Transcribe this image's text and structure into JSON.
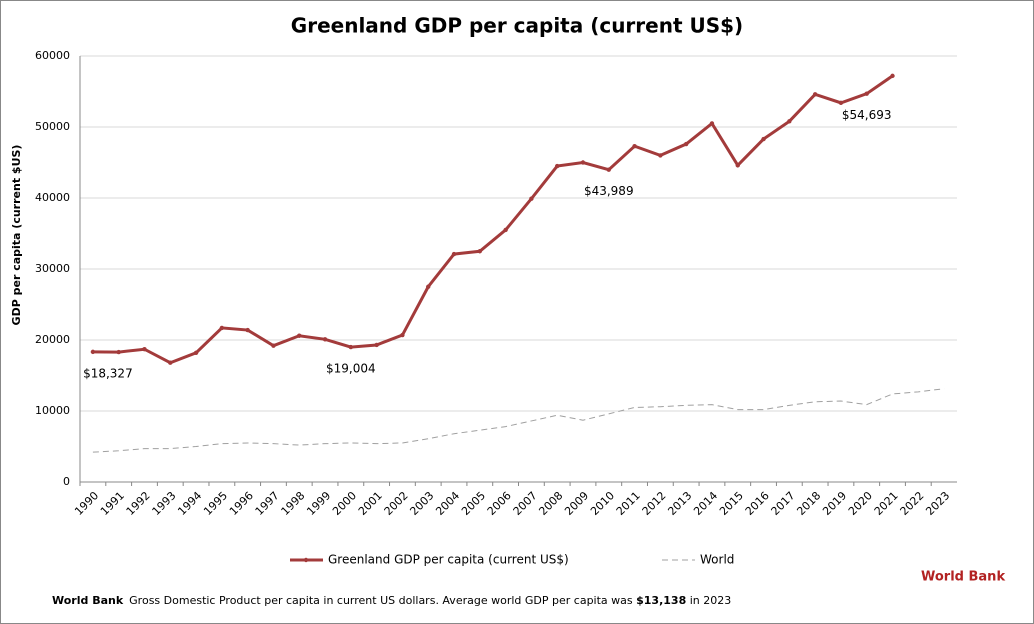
{
  "chart_data": {
    "type": "line",
    "title": "Greenland GDP per capita (current US$)",
    "y_label": "GDP per capita (current $US)",
    "categories": [
      "1990",
      "1991",
      "1992",
      "1993",
      "1994",
      "1995",
      "1996",
      "1997",
      "1998",
      "1999",
      "2000",
      "2001",
      "2002",
      "2003",
      "2004",
      "2005",
      "2006",
      "2007",
      "2008",
      "2009",
      "2010",
      "2011",
      "2012",
      "2013",
      "2014",
      "2015",
      "2016",
      "2017",
      "2018",
      "2019",
      "2020",
      "2021",
      "2022",
      "2023"
    ],
    "series": [
      {
        "name": "Greenland GDP per capita (current US$)",
        "color": "#a33b3b",
        "style": "solid",
        "values": [
          18327,
          18300,
          18700,
          16800,
          18200,
          21700,
          21400,
          19200,
          20600,
          20100,
          19004,
          19300,
          20700,
          27500,
          32100,
          32500,
          35500,
          39900,
          44500,
          45000,
          43989,
          47300,
          46000,
          47600,
          50500,
          44600,
          48300,
          50800,
          54600,
          53400,
          54693,
          57200,
          null,
          null
        ],
        "value_labels": [
          "$18,327",
          null,
          null,
          null,
          null,
          null,
          null,
          null,
          null,
          null,
          "$19,004",
          null,
          null,
          null,
          null,
          null,
          null,
          null,
          null,
          null,
          "$43,989",
          null,
          null,
          null,
          null,
          null,
          null,
          null,
          null,
          null,
          "$54,693",
          null,
          null,
          null
        ]
      },
      {
        "name": "World",
        "color": "#a0a0a0",
        "style": "dashed",
        "values": [
          4200,
          4400,
          4700,
          4700,
          5000,
          5400,
          5500,
          5400,
          5200,
          5400,
          5500,
          5400,
          5500,
          6100,
          6800,
          7300,
          7800,
          8600,
          9400,
          8700,
          9600,
          10500,
          10600,
          10800,
          10900,
          10200,
          10200,
          10800,
          11300,
          11400,
          10900,
          12400,
          12700,
          13138
        ]
      }
    ],
    "ylim": [
      0,
      60000
    ],
    "yticks": [
      0,
      10000,
      20000,
      30000,
      40000,
      50000,
      60000
    ],
    "grid": true
  },
  "footer": {
    "source": "World Bank",
    "text": "Gross Domestic Product per capita in current US dollars.  Average world GDP per capita was ",
    "highlight": "$13,138",
    "end": " in 2023",
    "brand": "World Bank"
  }
}
